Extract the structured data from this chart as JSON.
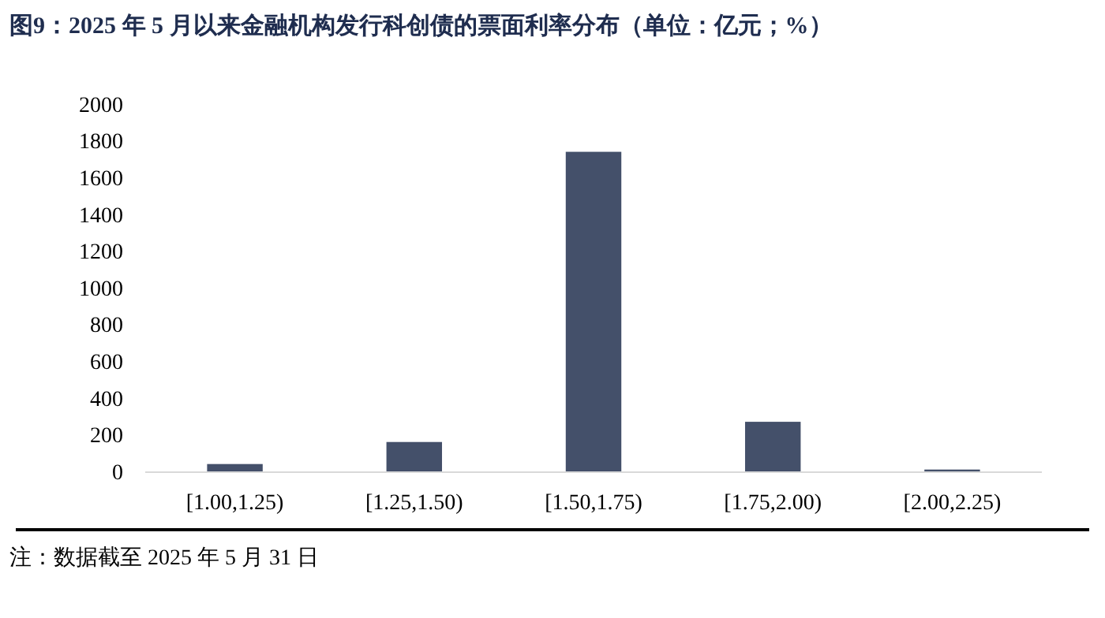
{
  "chart_data": {
    "type": "bar",
    "title": "图9：2025 年 5 月以来金融机构发行科创债的票面利率分布（单位：亿元；%）",
    "categories": [
      "[1.00,1.25)",
      "[1.25,1.50)",
      "[1.50,1.75)",
      "[1.75,2.00)",
      "[2.00,2.25)"
    ],
    "values": [
      40,
      160,
      1740,
      270,
      10
    ],
    "color": "#44506a",
    "ylim": [
      0,
      2000
    ],
    "yticks": [
      0,
      200,
      400,
      600,
      800,
      1000,
      1200,
      1400,
      1600,
      1800,
      2000
    ],
    "grid": false,
    "annotations": [
      "注：数据截至 2025 年 5 月 31 日"
    ]
  }
}
